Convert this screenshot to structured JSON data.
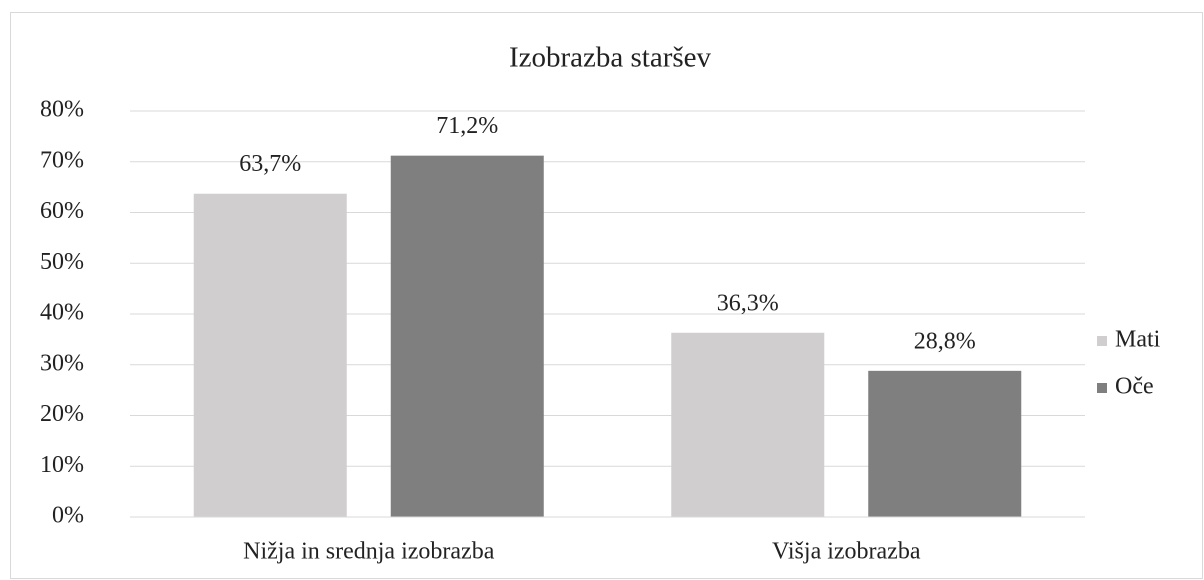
{
  "chart_data": {
    "type": "bar",
    "title": "Izobrazba staršev",
    "categories": [
      "Nižja in srednja izobrazba",
      "Višja izobrazba"
    ],
    "series": [
      {
        "name": "Mati",
        "color": "#d0cece",
        "values": [
          63.7,
          36.3
        ],
        "value_labels": [
          "63,7%",
          "36,3%"
        ]
      },
      {
        "name": "Oče",
        "color": "#7f7f7f",
        "values": [
          71.2,
          28.8
        ],
        "value_labels": [
          "71,2%",
          "28,8%"
        ]
      }
    ],
    "ylim": [
      0,
      80
    ],
    "yticks": [
      {
        "value": 0,
        "label": "0%"
      },
      {
        "value": 10,
        "label": "10%"
      },
      {
        "value": 20,
        "label": "20%"
      },
      {
        "value": 30,
        "label": "30%"
      },
      {
        "value": 40,
        "label": "40%"
      },
      {
        "value": 50,
        "label": "50%"
      },
      {
        "value": 60,
        "label": "60%"
      },
      {
        "value": 70,
        "label": "70%"
      },
      {
        "value": 80,
        "label": "80%"
      }
    ],
    "grid": true,
    "legend": "right"
  }
}
